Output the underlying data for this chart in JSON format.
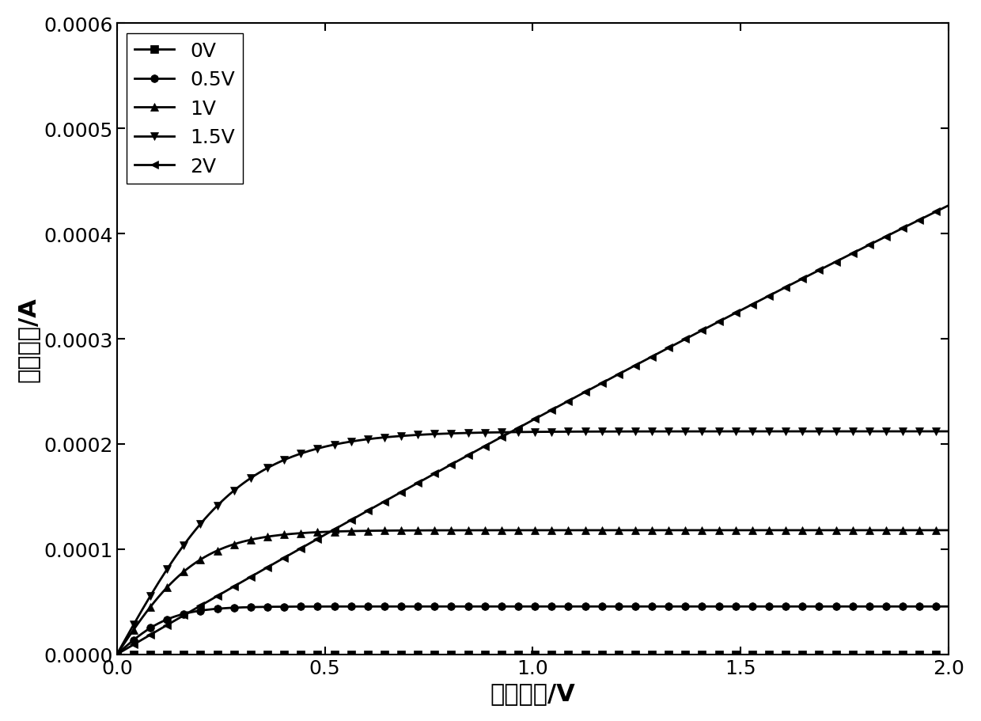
{
  "title": "",
  "xlabel": "源漏电压/V",
  "ylabel": "漏极电流/A",
  "xlim": [
    0.0,
    2.0
  ],
  "ylim": [
    0.0,
    0.0006
  ],
  "xticks": [
    0.0,
    0.5,
    1.0,
    1.5,
    2.0
  ],
  "yticks": [
    0.0,
    0.0001,
    0.0002,
    0.0003,
    0.0004,
    0.0005,
    0.0006
  ],
  "series": [
    {
      "label": "0V",
      "Vg": 0.0,
      "Vth": 0.3,
      "k": 0.000225,
      "lam": 0.0,
      "marker": "s"
    },
    {
      "label": "0.5V",
      "Vg": 0.5,
      "Vth": 0.3,
      "k": 0.000225,
      "lam": 0.08,
      "marker": "o"
    },
    {
      "label": "1V",
      "Vg": 1.0,
      "Vth": 0.3,
      "k": 0.000225,
      "lam": 0.08,
      "marker": "^"
    },
    {
      "label": "1.5V",
      "Vg": 1.5,
      "Vth": 0.3,
      "k": 0.000225,
      "lam": 0.08,
      "marker": "v"
    },
    {
      "label": "2V",
      "Vg": 2.0,
      "Vth": 0.3,
      "k": 0.000225,
      "lam": 0.08,
      "marker": "<"
    }
  ],
  "background_color": "#ffffff",
  "marker_size": 7,
  "line_width": 2.0,
  "xlabel_fontsize": 22,
  "ylabel_fontsize": 22,
  "tick_fontsize": 18,
  "legend_fontsize": 18,
  "markevery": 4
}
